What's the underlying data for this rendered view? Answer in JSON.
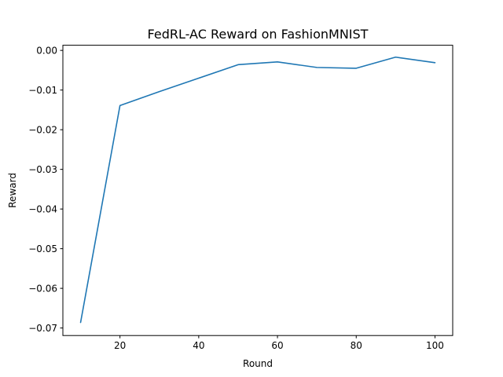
{
  "chart_data": {
    "type": "line",
    "title": "FedRL-AC Reward on FashionMNIST",
    "xlabel": "Round",
    "ylabel": "Reward",
    "x": [
      10,
      20,
      30,
      40,
      50,
      60,
      70,
      80,
      90,
      100
    ],
    "series": [
      {
        "values": [
          -0.0686,
          -0.0139,
          -0.0104,
          -0.007,
          -0.0036,
          -0.0029,
          -0.0043,
          -0.0045,
          -0.0017,
          -0.0031
        ]
      }
    ],
    "xlim": [
      5.5,
      104.5
    ],
    "ylim": [
      -0.0719,
      0.0013
    ],
    "xticks": [
      20,
      40,
      60,
      80,
      100
    ],
    "xtick_labels": [
      "20",
      "40",
      "60",
      "80",
      "100"
    ],
    "yticks": [
      -0.07,
      -0.06,
      -0.05,
      -0.04,
      -0.03,
      -0.02,
      -0.01,
      0.0
    ],
    "ytick_labels": [
      "−0.07",
      "−0.06",
      "−0.05",
      "−0.04",
      "−0.03",
      "−0.02",
      "−0.01",
      "0.00"
    ],
    "grid": false,
    "line_color": "#1f77b4"
  }
}
